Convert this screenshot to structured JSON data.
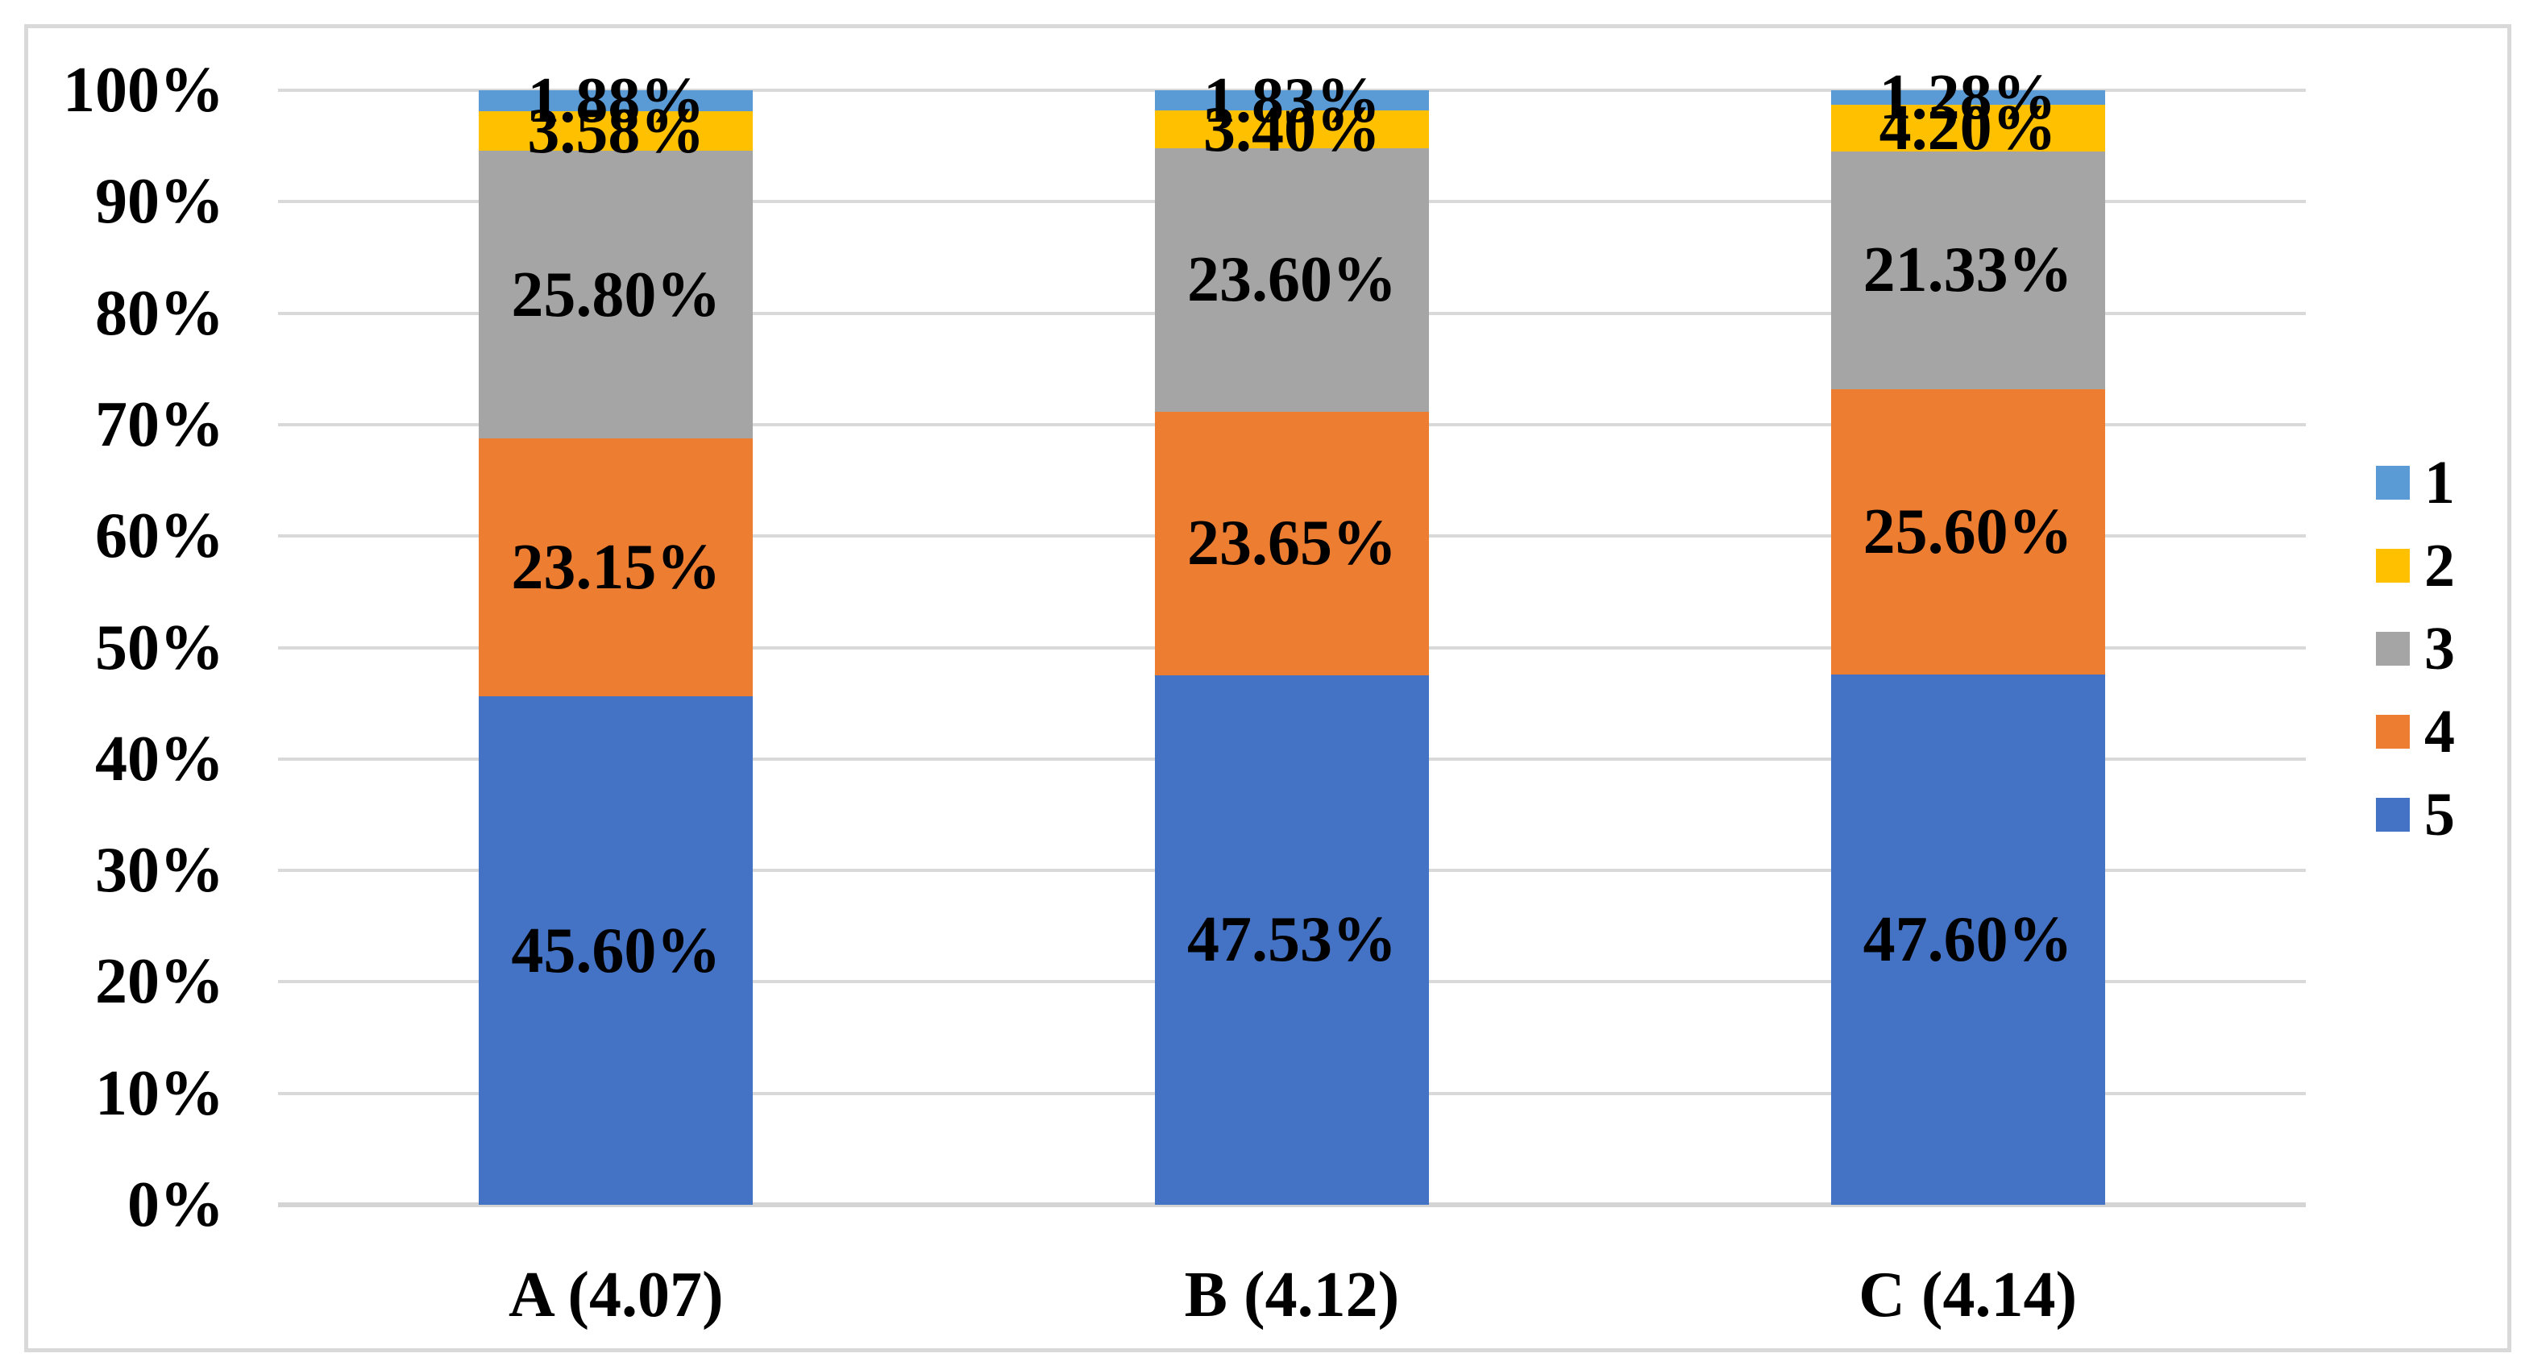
{
  "chart_data": {
    "type": "bar",
    "stacked": true,
    "stack_unit": "percent",
    "categories": [
      "A (4.07)",
      "B (4.12)",
      "C (4.14)"
    ],
    "series": [
      {
        "name": "1",
        "color": "#5B9BD5",
        "values": [
          1.88,
          1.83,
          1.28
        ],
        "labels": [
          "1.88%",
          "1.83%",
          "1.28%"
        ]
      },
      {
        "name": "2",
        "color": "#FFC000",
        "values": [
          3.58,
          3.4,
          4.2
        ],
        "labels": [
          "3.58%",
          "3.40%",
          "4.20%"
        ]
      },
      {
        "name": "3",
        "color": "#A5A5A5",
        "values": [
          25.8,
          23.6,
          21.33
        ],
        "labels": [
          "25.80%",
          "23.60%",
          "21.33%"
        ]
      },
      {
        "name": "4",
        "color": "#ED7D31",
        "values": [
          23.15,
          23.65,
          25.6
        ],
        "labels": [
          "23.15%",
          "23.65%",
          "25.60%"
        ]
      },
      {
        "name": "5",
        "color": "#4472C4",
        "values": [
          45.6,
          47.53,
          47.6
        ],
        "labels": [
          "45.60%",
          "47.53%",
          "47.60%"
        ]
      }
    ],
    "stack_order_bottom_to_top": [
      "5",
      "4",
      "3",
      "2",
      "1"
    ],
    "y_axis": {
      "min": 0,
      "max": 100,
      "tick_step": 10,
      "ticks": [
        "0%",
        "10%",
        "20%",
        "30%",
        "40%",
        "50%",
        "60%",
        "70%",
        "80%",
        "90%",
        "100%"
      ],
      "grid": true
    },
    "legend": {
      "position": "right",
      "entries": [
        "1",
        "2",
        "3",
        "4",
        "5"
      ]
    },
    "colors": {
      "background": "#FFFFFF",
      "gridline": "#D9D9D9",
      "axis_line": "#D4D4D4",
      "frame_border": "#D9D9D9",
      "label_text": "#000000"
    }
  }
}
